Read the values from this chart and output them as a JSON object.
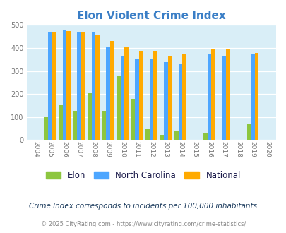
{
  "title": "Elon Violent Crime Index",
  "years": [
    2004,
    2005,
    2006,
    2007,
    2008,
    2009,
    2010,
    2011,
    2012,
    2013,
    2014,
    2015,
    2016,
    2017,
    2018,
    2019,
    2020
  ],
  "elon": [
    0,
    100,
    152,
    128,
    202,
    128,
    278,
    178,
    46,
    22,
    38,
    0,
    32,
    0,
    0,
    67,
    0
  ],
  "nc": [
    0,
    469,
    476,
    466,
    466,
    406,
    362,
    350,
    354,
    337,
    328,
    0,
    372,
    362,
    0,
    372,
    0
  ],
  "national": [
    0,
    469,
    473,
    466,
    454,
    432,
    405,
    388,
    388,
    366,
    376,
    0,
    397,
    394,
    0,
    379,
    0
  ],
  "elon_color": "#8dc63f",
  "nc_color": "#4da6ff",
  "national_color": "#ffaa00",
  "bg_color": "#d9eef7",
  "title_color": "#3a7ec6",
  "subtitle_color": "#1a3a5c",
  "footer_color": "#888888",
  "footer_link_color": "#4da6ff",
  "legend_label_color": "#1a1a4a",
  "tick_label_color": "#777777",
  "subtitle": "Crime Index corresponds to incidents per 100,000 inhabitants",
  "footer_plain": "© 2025 CityRating.com - ",
  "footer_link": "https://www.cityrating.com/crime-statistics/",
  "ylim": [
    0,
    500
  ],
  "yticks": [
    0,
    100,
    200,
    300,
    400,
    500
  ],
  "bar_width": 0.27
}
